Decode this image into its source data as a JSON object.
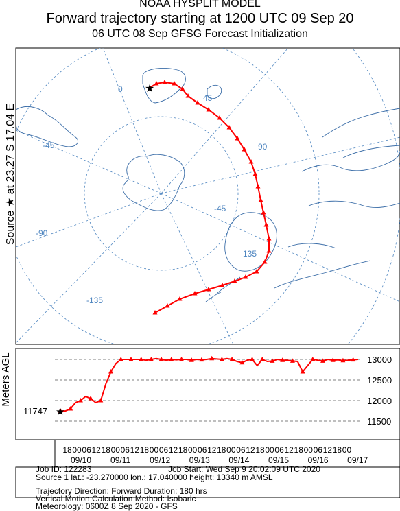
{
  "header": {
    "model": "NOAA HYSPLIT MODEL",
    "title": "Forward trajectory starting at 1200 UTC 09 Sep 20",
    "subtitle": "06 UTC 08 Sep    GFSG  Forecast Initialization"
  },
  "side_labels": {
    "source": "Source ★  at   23.27 S   17.04 E",
    "height_axis": "Meters AGL"
  },
  "map": {
    "longitude_labels": [
      "0",
      "45",
      "-45",
      "90",
      "-45",
      "-90",
      "135",
      "-135"
    ],
    "trajectory_color": "#ff0000",
    "grid_color": "#4f86c0",
    "coast_color": "#3c6ea8"
  },
  "height_panel": {
    "start_label": "11747",
    "yticks": [
      "13000",
      "12500",
      "12000",
      "11500"
    ],
    "time_ticks": [
      "18",
      "00",
      "06",
      "12",
      "18",
      "00",
      "06",
      "12",
      "18",
      "00",
      "06",
      "12",
      "18",
      "00",
      "06",
      "12",
      "18",
      "00",
      "06",
      "12",
      "18",
      "00",
      "06",
      "12",
      "18",
      "00",
      "06",
      "12",
      "18",
      "00"
    ],
    "dates": [
      "09/10",
      "09/11",
      "09/12",
      "09/13",
      "09/14",
      "09/15",
      "09/16",
      "09/17"
    ]
  },
  "chart_data": {
    "type": "line",
    "xlabel": "",
    "ylabel": "Meters AGL",
    "ylim": [
      11500,
      13000
    ],
    "series": [
      {
        "values": [
          11747,
          11747,
          11800,
          11950,
          12000,
          12100,
          12050,
          11950,
          12000,
          12400,
          12700,
          12900,
          13000,
          13000,
          13000,
          13000,
          13000,
          12980,
          13000,
          13020,
          13000,
          12980,
          13000,
          12990,
          13000,
          13000,
          12980,
          13000,
          12990,
          13000,
          13020,
          13010,
          13000,
          13020,
          13000,
          12950,
          12920,
          12980,
          13000,
          12850,
          13000,
          12950,
          12960,
          13000,
          12980,
          12980,
          12960,
          12950,
          12700,
          12850,
          13000,
          12980,
          12960,
          13000,
          12980,
          12990,
          12970,
          12980,
          12990,
          13000
        ]
      }
    ]
  },
  "info": {
    "line1_left": "Job ID: 122283",
    "line1_right": "Job Start: Wed Sep  9 20:02:09 UTC 2020",
    "line2": "Source 1      lat.: -23.270000    lon.: 17.040000    height: 13340 m AMSL",
    "line3": "Trajectory Direction: Forward       Duration: 180 hrs",
    "line4": "Vertical Motion Calculation Method:         Isobaric",
    "line5": "Meteorology: 0600Z  8 Sep 2020 - GFS"
  }
}
